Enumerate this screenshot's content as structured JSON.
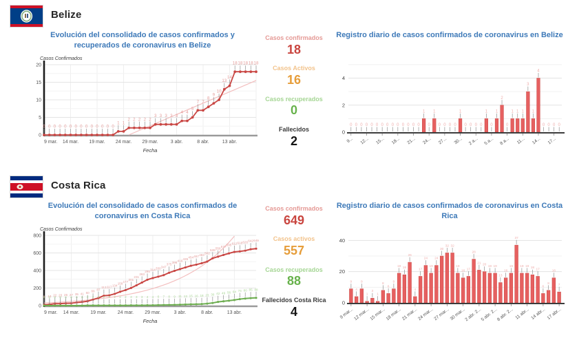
{
  "colors": {
    "title_blue": "#3d79b8",
    "series_red": "#c94744",
    "series_red_fill": "#e66060",
    "series_green": "#6fae52",
    "data_label_red": "#e49c9a",
    "data_label_green": "#a8d495",
    "trend_pink": "#f3bebe",
    "stat_red": "#c9453f",
    "stat_orange": "#e69d3a",
    "stat_green": "#67b24b",
    "stat_dark": "#141414"
  },
  "sections": [
    {
      "country": "Belize",
      "flag_icon": "belize-flag-icon",
      "stats": [
        {
          "label": "Casos confirmados",
          "value": "18"
        },
        {
          "label": "Casos Activos",
          "value": "16"
        },
        {
          "label": "Casos recuperados",
          "value": "0"
        },
        {
          "label": "Fallecidos",
          "value": "2"
        }
      ]
    },
    {
      "country": "Costa Rica",
      "flag_icon": "costa-rica-flag-icon",
      "stats": [
        {
          "label": "Casos confirmados",
          "value": "649"
        },
        {
          "label": "Casos activos",
          "value": "557"
        },
        {
          "label": "Casos recuperados",
          "value": "88"
        },
        {
          "label": "Fallecidos Costa Rica",
          "value": "4"
        }
      ]
    }
  ],
  "chart_data": [
    {
      "id": "belize-evolucion",
      "type": "line",
      "title": "Evolución del consolidado de casos confirmados y recuperados de coronavirus en Belize",
      "ylabel": "Casos Confirmados",
      "xlabel": "Fecha",
      "ylim": [
        0,
        20
      ],
      "yticks": [
        0,
        5,
        10,
        15,
        20
      ],
      "minor_grid": 2.5,
      "xtick_step": 5,
      "xtick_labels": [
        "9 mar.",
        "14 mar.",
        "19 mar.",
        "24 mar.",
        "29 mar.",
        "3 abr.",
        "8 abr.",
        "13 abr."
      ],
      "legend": "none",
      "grid": true,
      "series": [
        {
          "name": "Casos confirmados",
          "color": "#c94744",
          "label_color": "#e49c9a",
          "values": [
            0,
            0,
            0,
            0,
            0,
            0,
            0,
            0,
            0,
            0,
            0,
            0,
            0,
            0,
            1,
            1,
            2,
            2,
            2,
            2,
            2,
            3,
            3,
            3,
            3,
            3,
            4,
            4,
            5,
            7,
            7,
            8,
            9,
            10,
            13,
            14,
            18,
            18,
            18,
            18,
            18
          ]
        }
      ],
      "trend": {
        "type": "linear",
        "x0": 16,
        "y0": 0,
        "x1": 40,
        "y1": 15.5,
        "color": "#f3bebe"
      }
    },
    {
      "id": "belize-registro-diario",
      "type": "bar",
      "title": "Registro diario de casos confirmados de coronavirus en Belize",
      "xlabel": "",
      "ylabel": "",
      "ylim": [
        0,
        5.2
      ],
      "yticks": [
        0,
        2,
        4
      ],
      "grid_values": [
        1,
        2,
        3,
        4,
        5
      ],
      "xtick_step": 3,
      "xtick_labels": [
        "9...",
        "12...",
        "15...",
        "18...",
        "21...",
        "24...",
        "27...",
        "30...",
        "2 a...",
        "5 a...",
        "8 a...",
        "11...",
        "14...",
        "17..."
      ],
      "legend": "none",
      "grid": true,
      "bar_color": "#e66060",
      "bar_stroke": "#c94744",
      "label_color": "#eeadab",
      "values": [
        0,
        0,
        0,
        0,
        0,
        0,
        0,
        0,
        0,
        0,
        0,
        0,
        0,
        0,
        1,
        0,
        1,
        0,
        0,
        0,
        0,
        1,
        0,
        0,
        0,
        0,
        1,
        0,
        1,
        2,
        0,
        1,
        1,
        1,
        3,
        1,
        4,
        0,
        0,
        0,
        0
      ]
    },
    {
      "id": "costa-rica-evolucion",
      "type": "line",
      "title": "Evolución del consolidado de casos confirmados de coronavirus en Costa Rica",
      "ylabel": "Casos Confirmados",
      "xlabel": "Fecha",
      "ylim": [
        0,
        800
      ],
      "yticks": [
        0,
        200,
        400,
        600,
        800
      ],
      "minor_grid": 100,
      "xtick_step": 5,
      "xtick_labels": [
        "9 mar.",
        "14 mar.",
        "19 mar.",
        "24 mar.",
        "29 mar.",
        "3 abr.",
        "8 abr.",
        "13 abr."
      ],
      "legend": "none",
      "grid": true,
      "series": [
        {
          "name": "Casos confirmados",
          "color": "#c94744",
          "label_color": "#e49c9a",
          "values": [
            9,
            13,
            22,
            23,
            26,
            27,
            35,
            41,
            50,
            69,
            87,
            113,
            117,
            134,
            158,
            177,
            201,
            231,
            263,
            295,
            314,
            330,
            347,
            375,
            396,
            416,
            435,
            454,
            467,
            483,
            502,
            539,
            558,
            577,
            595,
            612,
            618,
            626,
            642,
            649
          ]
        },
        {
          "name": "Casos recuperados",
          "color": "#6fae52",
          "label_color": "#a8d495",
          "values": [
            0,
            0,
            0,
            0,
            0,
            0,
            0,
            0,
            2,
            2,
            2,
            2,
            2,
            2,
            2,
            2,
            3,
            3,
            3,
            4,
            4,
            6,
            7,
            8,
            9,
            11,
            13,
            15,
            16,
            18,
            23,
            30,
            42,
            49,
            56,
            64,
            74,
            80,
            85,
            88
          ]
        }
      ],
      "trend": {
        "type": "exp",
        "a": 30,
        "b": 1.098,
        "color": "#f3bebe"
      }
    },
    {
      "id": "costa-rica-registro-diario",
      "type": "bar",
      "title": "Registro diario de casos confirmados de coronavirus en Costa Rica",
      "xlabel": "",
      "ylabel": "",
      "ylim": [
        0,
        45
      ],
      "yticks": [
        0,
        20,
        40
      ],
      "grid_values": [
        10,
        20,
        30,
        40
      ],
      "xtick_step": 3,
      "xtick_labels": [
        "9 mar...",
        "12 mar...",
        "15 mar...",
        "18 mar...",
        "21 mar...",
        "24 mar...",
        "27 mar...",
        "30 mar...",
        "2 abr. 2...",
        "5 abr. 2...",
        "8 abr. 2...",
        "11 abr...",
        "14 abr...",
        "17 abr..."
      ],
      "legend": "none",
      "grid": true,
      "bar_color": "#e66060",
      "bar_stroke": "#c94744",
      "label_color": "#eeadab",
      "values": [
        9,
        4,
        9,
        1,
        3,
        1,
        8,
        6,
        9,
        19,
        18,
        26,
        4,
        17,
        24,
        19,
        24,
        30,
        32,
        32,
        19,
        16,
        17,
        28,
        21,
        20,
        19,
        19,
        13,
        16,
        19,
        37,
        19,
        19,
        18,
        17,
        6,
        8,
        16,
        7
      ]
    }
  ]
}
